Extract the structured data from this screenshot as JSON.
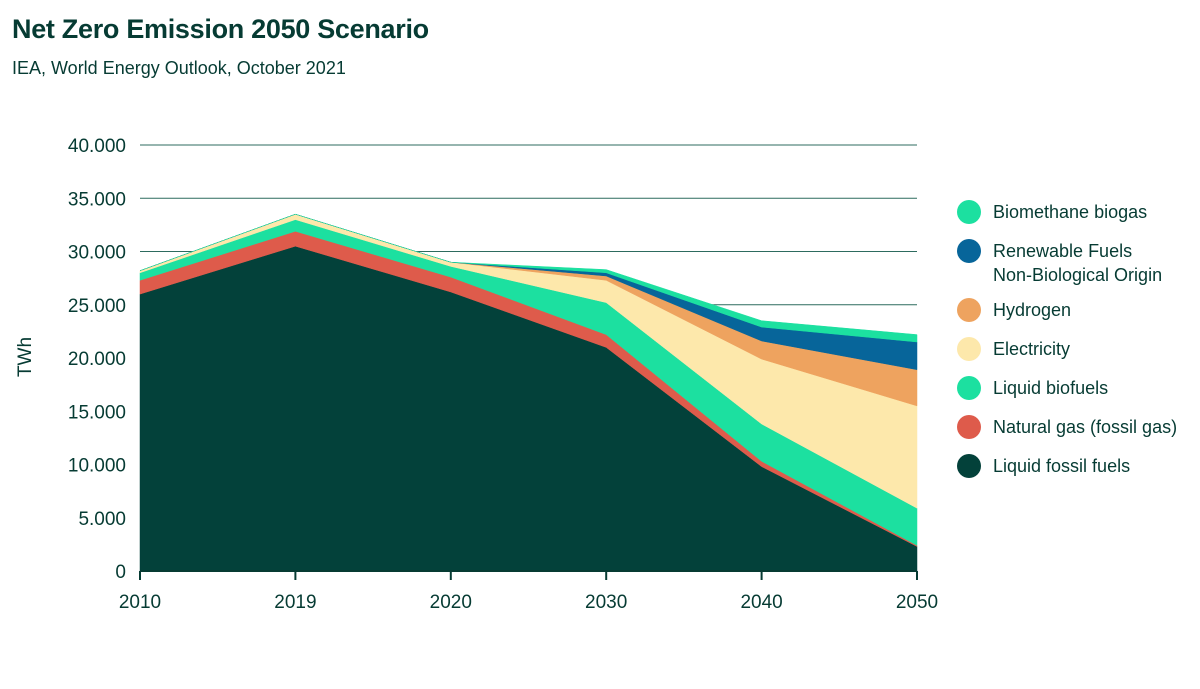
{
  "header": {
    "title": "Net Zero Emission 2050 Scenario",
    "subtitle": "IEA, World Energy Outlook, October 2021"
  },
  "chart_data": {
    "type": "area",
    "stacked": true,
    "title": "Net Zero Emission 2050 Scenario",
    "subtitle": "IEA, World Energy Outlook, October 2021",
    "xlabel": "",
    "ylabel": "TWh",
    "categories": [
      "2010",
      "2019",
      "2020",
      "2030",
      "2040",
      "2050"
    ],
    "ylim": [
      0,
      40000
    ],
    "yticks": [
      0,
      5000,
      10000,
      15000,
      20000,
      25000,
      30000,
      35000,
      40000
    ],
    "ytick_labels": [
      "0",
      "5.000",
      "10.000",
      "15.000",
      "20.000",
      "25.000",
      "30.000",
      "35.000",
      "40.000"
    ],
    "grid": true,
    "legend_position": "right",
    "series": [
      {
        "name": "Liquid fossil fuels",
        "color": "#03413a",
        "values": [
          26000,
          30500,
          26200,
          21000,
          9800,
          2300
        ]
      },
      {
        "name": "Natural gas (fossil gas)",
        "color": "#de5b4b",
        "values": [
          1300,
          1400,
          1400,
          1200,
          500,
          100
        ]
      },
      {
        "name": "Liquid biofuels",
        "color": "#1ce0a0",
        "values": [
          700,
          1100,
          1000,
          3000,
          3500,
          3500
        ]
      },
      {
        "name": "Electricity",
        "color": "#fde8ab",
        "values": [
          200,
          500,
          400,
          2100,
          6100,
          9600
        ]
      },
      {
        "name": "Hydrogen",
        "color": "#eea35f",
        "values": [
          0,
          0,
          0,
          400,
          1700,
          3400
        ]
      },
      {
        "name": "Renewable Fuels Non-Biological Origin",
        "color": "#07659a",
        "values": [
          0,
          0,
          0,
          300,
          1300,
          2600
        ]
      },
      {
        "name": "Biomethane biogas",
        "color": "#1ce0a0",
        "values": [
          0,
          0,
          0,
          300,
          600,
          700
        ]
      }
    ]
  },
  "legend": {
    "items": [
      {
        "label": "Biomethane biogas",
        "color": "#1ce0a0"
      },
      {
        "label": "Renewable Fuels\nNon-Biological Origin",
        "color": "#07659a"
      },
      {
        "label": "Hydrogen",
        "color": "#eea35f"
      },
      {
        "label": "Electricity",
        "color": "#fde8ab"
      },
      {
        "label": "Liquid biofuels",
        "color": "#1ce0a0"
      },
      {
        "label": "Natural gas (fossil gas)",
        "color": "#de5b4b"
      },
      {
        "label": "Liquid fossil fuels",
        "color": "#03413a"
      }
    ]
  }
}
